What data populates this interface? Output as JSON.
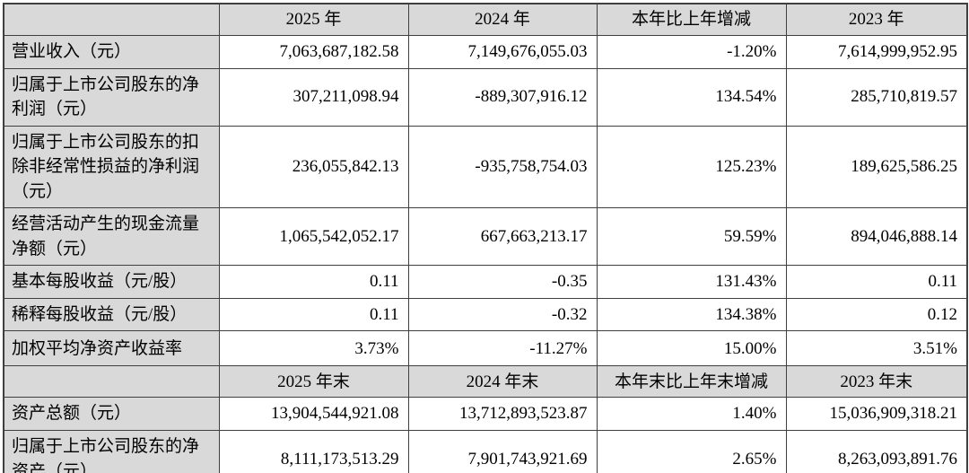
{
  "colors": {
    "header_fill": "#d9d9d9",
    "border": "#3f3f3f",
    "cell_fill": "#ffffff",
    "text": "#000000"
  },
  "table": {
    "corner_blank": "",
    "header_period": {
      "c1": "2025 年",
      "c2": "2024 年",
      "c3": "本年比上年增减",
      "c4": "2023 年"
    },
    "rows_period": [
      {
        "label": "营业收入（元）",
        "values": [
          "7,063,687,182.58",
          "7,149,676,055.03",
          "-1.20%",
          "7,614,999,952.95"
        ]
      },
      {
        "label": "归属于上市公司股东的净利润（元）",
        "values": [
          "307,211,098.94",
          "-889,307,916.12",
          "134.54%",
          "285,710,819.57"
        ]
      },
      {
        "label": "归属于上市公司股东的扣除非经常性损益的净利润（元）",
        "values": [
          "236,055,842.13",
          "-935,758,754.03",
          "125.23%",
          "189,625,586.25"
        ]
      },
      {
        "label": "经营活动产生的现金流量净额（元）",
        "values": [
          "1,065,542,052.17",
          "667,663,213.17",
          "59.59%",
          "894,046,888.14"
        ]
      },
      {
        "label": "基本每股收益（元/股）",
        "values": [
          "0.11",
          "-0.35",
          "131.43%",
          "0.11"
        ]
      },
      {
        "label": "稀释每股收益（元/股）",
        "values": [
          "0.11",
          "-0.32",
          "134.38%",
          "0.12"
        ]
      },
      {
        "label": "加权平均净资产收益率",
        "values": [
          "3.73%",
          "-11.27%",
          "15.00%",
          "3.51%"
        ]
      }
    ],
    "header_end": {
      "c0": "",
      "c1": "2025 年末",
      "c2": "2024 年末",
      "c3": "本年末比上年末增减",
      "c4": "2023 年末"
    },
    "rows_end": [
      {
        "label": "资产总额（元）",
        "values": [
          "13,904,544,921.08",
          "13,712,893,523.87",
          "1.40%",
          "15,036,909,318.21"
        ]
      },
      {
        "label": "归属于上市公司股东的净资产（元）",
        "values": [
          "8,111,173,513.29",
          "7,901,743,921.69",
          "2.65%",
          "8,263,093,891.76"
        ]
      }
    ]
  }
}
